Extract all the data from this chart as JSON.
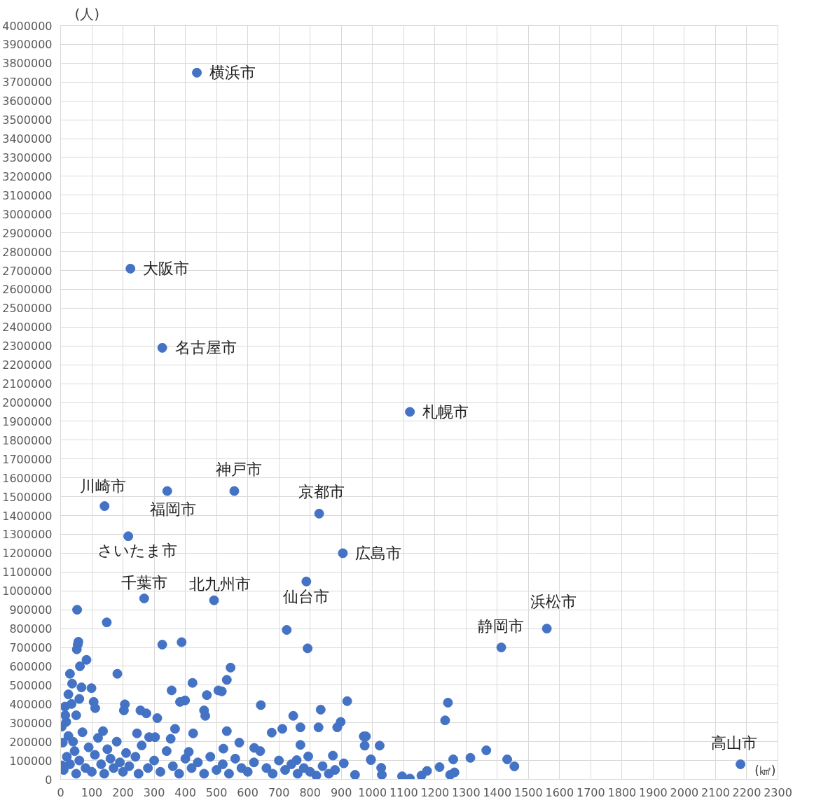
{
  "chart_data": {
    "type": "scatter",
    "xlabel": "(㎢)",
    "ylabel": "(人)",
    "marker": "circle",
    "grid": true,
    "xlim": [
      0,
      2300
    ],
    "ylim": [
      0,
      4000000
    ],
    "xticks": [
      0,
      100,
      200,
      300,
      400,
      500,
      600,
      700,
      800,
      900,
      1000,
      1100,
      1200,
      1300,
      1400,
      1500,
      1600,
      1700,
      1800,
      1900,
      2000,
      2100,
      2200,
      2300
    ],
    "yticks": [
      0,
      100000,
      200000,
      300000,
      400000,
      500000,
      600000,
      700000,
      800000,
      900000,
      1000000,
      1100000,
      1200000,
      1300000,
      1400000,
      1500000,
      1600000,
      1700000,
      1800000,
      1900000,
      2000000,
      2100000,
      2200000,
      2300000,
      2400000,
      2500000,
      2600000,
      2700000,
      2800000,
      2900000,
      3000000,
      3100000,
      3200000,
      3300000,
      3400000,
      3500000,
      3600000,
      3700000,
      3800000,
      3900000,
      4000000
    ],
    "series": [
      {
        "color": "#4472c4",
        "x": [
          437,
          224,
          326,
          1120,
          557,
          342,
          141,
          829,
          217,
          905,
          788,
          268,
          492,
          1559,
          1413,
          2180,
          53,
          148,
          55,
          52,
          57,
          83,
          62,
          30,
          182,
          326,
          388,
          545,
          533,
          423,
          506,
          517,
          469,
          356,
          383,
          399,
          460,
          464,
          642,
          725,
          792,
          834,
          919,
          898,
          887,
          827,
          746,
          769,
          711,
          677,
          769,
          794,
          757,
          873,
          944,
          908,
          972,
          995,
          533,
          425,
          367,
          353,
          310,
          256,
          275,
          206,
          99,
          106,
          111,
          203,
          136,
          245,
          284,
          303,
          411,
          522,
          573,
          621,
          67,
          60,
          37,
          25,
          14,
          18,
          7,
          5,
          979,
          975,
          1023,
          995,
          1028,
          1030,
          1095,
          1120,
          1157,
          1175,
          1215,
          1233,
          1242,
          1259,
          1249,
          1263,
          1314,
          1365,
          1432,
          1455,
          10,
          20,
          30,
          40,
          45,
          50,
          60,
          70,
          80,
          90,
          100,
          110,
          120,
          130,
          140,
          150,
          160,
          170,
          180,
          190,
          200,
          210,
          220,
          240,
          250,
          260,
          280,
          300,
          320,
          340,
          360,
          380,
          400,
          420,
          440,
          460,
          480,
          500,
          520,
          540,
          560,
          580,
          600,
          620,
          640,
          660,
          680,
          700,
          720,
          740,
          760,
          780,
          800,
          820,
          840,
          860,
          880,
          4,
          15,
          25,
          35,
          50
        ],
        "values": [
          3750000,
          2710000,
          2290000,
          1950000,
          1530000,
          1530000,
          1450000,
          1410000,
          1290000,
          1200000,
          1050000,
          960000,
          950000,
          800000,
          700000,
          80000,
          900000,
          833000,
          715000,
          690000,
          730000,
          634000,
          600000,
          560000,
          560000,
          715000,
          728000,
          593000,
          528000,
          512000,
          472000,
          467000,
          447000,
          472000,
          411000,
          419000,
          366000,
          337000,
          394000,
          793000,
          695000,
          370000,
          415000,
          305000,
          276000,
          276000,
          337000,
          276000,
          268000,
          248000,
          183000,
          122000,
          102000,
          126000,
          24000,
          85000,
          228000,
          106000,
          256000,
          244000,
          268000,
          215000,
          325000,
          366000,
          350000,
          398000,
          484000,
          411000,
          378000,
          366000,
          256000,
          244000,
          224000,
          224000,
          146000,
          163000,
          195000,
          167000,
          488000,
          427000,
          508000,
          451000,
          386000,
          305000,
          195000,
          73000,
          228000,
          179000,
          179000,
          102000,
          61000,
          24000,
          16000,
          4000,
          20000,
          45000,
          65000,
          313000,
          407000,
          106000,
          24000,
          37000,
          114000,
          154000,
          106000,
          69000,
          50000,
          120000,
          80000,
          200000,
          150000,
          30000,
          100000,
          250000,
          60000,
          170000,
          40000,
          130000,
          220000,
          80000,
          30000,
          160000,
          110000,
          60000,
          200000,
          90000,
          40000,
          140000,
          70000,
          120000,
          30000,
          180000,
          60000,
          100000,
          40000,
          150000,
          70000,
          30000,
          110000,
          60000,
          90000,
          30000,
          120000,
          50000,
          80000,
          30000,
          110000,
          60000,
          40000,
          90000,
          150000,
          60000,
          30000,
          100000,
          50000,
          80000,
          30000,
          60000,
          40000,
          20000,
          70000,
          30000,
          50000,
          280000,
          340000,
          230000,
          400000,
          340000
        ]
      }
    ],
    "annotations": [
      {
        "text": "横浜市",
        "x": 437,
        "y": 3750000
      },
      {
        "text": "大阪市",
        "x": 224,
        "y": 2710000
      },
      {
        "text": "名古屋市",
        "x": 326,
        "y": 2290000
      },
      {
        "text": "札幌市",
        "x": 1120,
        "y": 1950000
      },
      {
        "text": "神戸市",
        "x": 557,
        "y": 1530000
      },
      {
        "text": "福岡市",
        "x": 342,
        "y": 1530000
      },
      {
        "text": "川崎市",
        "x": 141,
        "y": 1450000
      },
      {
        "text": "京都市",
        "x": 829,
        "y": 1410000
      },
      {
        "text": "さいたま市",
        "x": 217,
        "y": 1290000
      },
      {
        "text": "広島市",
        "x": 905,
        "y": 1200000
      },
      {
        "text": "仙台市",
        "x": 788,
        "y": 1050000
      },
      {
        "text": "千葉市",
        "x": 268,
        "y": 960000
      },
      {
        "text": "北九州市",
        "x": 492,
        "y": 950000
      },
      {
        "text": "浜松市",
        "x": 1559,
        "y": 800000
      },
      {
        "text": "静岡市",
        "x": 1413,
        "y": 700000
      },
      {
        "text": "高山市",
        "x": 2180,
        "y": 80000
      }
    ]
  }
}
